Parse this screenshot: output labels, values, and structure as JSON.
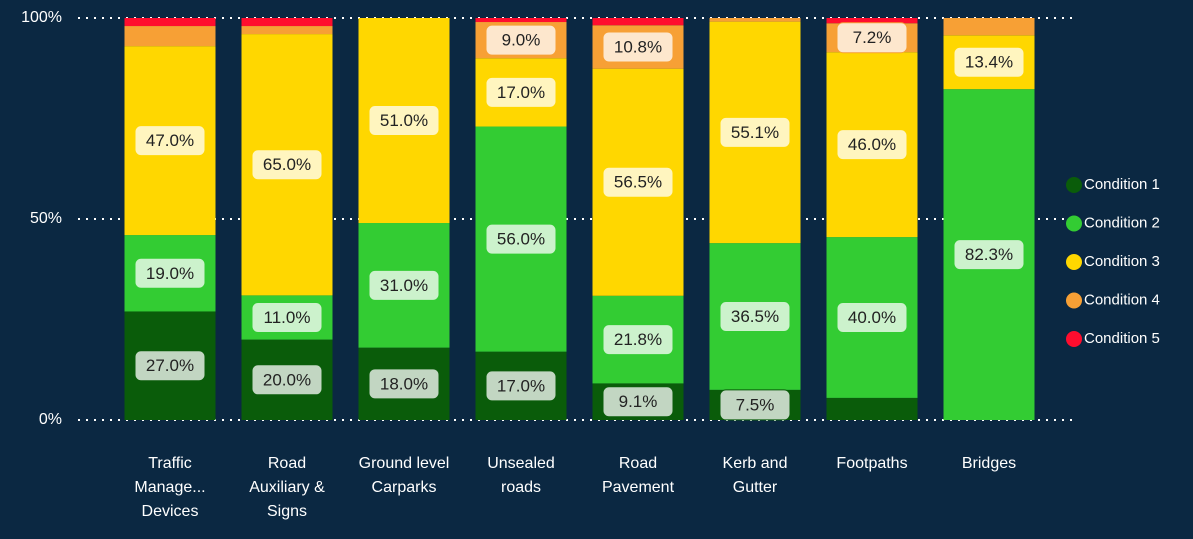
{
  "chart_data": {
    "type": "stacked_bar_100",
    "categories": [
      "Traffic Manage... Devices",
      "Road Auxiliary & Signs",
      "Ground level Carparks",
      "Unsealed roads",
      "Road Pavement",
      "Kerb and Gutter",
      "Footpaths",
      "Bridges"
    ],
    "series": [
      {
        "name": "Condition 1",
        "color": "#0a5c0a",
        "values": [
          27.0,
          20.0,
          18.0,
          17.0,
          9.1,
          7.5,
          5.5,
          0
        ],
        "value_labels": [
          "27.0%",
          "20.0%",
          "18.0%",
          "17.0%",
          "9.1%",
          "7.5%",
          null,
          null
        ]
      },
      {
        "name": "Condition 2",
        "color": "#33cc33",
        "values": [
          19.0,
          11.0,
          31.0,
          56.0,
          21.8,
          36.5,
          40.0,
          82.3
        ],
        "value_labels": [
          "19.0%",
          "11.0%",
          "31.0%",
          "56.0%",
          "21.8%",
          "36.5%",
          "40.0%",
          "82.3%"
        ]
      },
      {
        "name": "Condition 3",
        "color": "#ffd700",
        "values": [
          47.0,
          65.0,
          51.0,
          17.0,
          56.5,
          55.1,
          46.0,
          13.4
        ],
        "value_labels": [
          "47.0%",
          "65.0%",
          "51.0%",
          "17.0%",
          "56.5%",
          "55.1%",
          "46.0%",
          "13.4%"
        ]
      },
      {
        "name": "Condition 4",
        "color": "#f7a035",
        "values": [
          5.0,
          2.0,
          0,
          9.0,
          10.8,
          0.9,
          7.2,
          4.3
        ],
        "value_labels": [
          null,
          null,
          null,
          "9.0%",
          "10.8%",
          null,
          "7.2%",
          null
        ]
      },
      {
        "name": "Condition 5",
        "color": "#ff0d2e",
        "values": [
          2.0,
          2.0,
          0,
          1.0,
          1.8,
          0,
          1.3,
          0
        ],
        "value_labels": [
          null,
          null,
          null,
          null,
          null,
          null,
          null,
          null
        ]
      }
    ],
    "ylim": [
      0,
      100
    ],
    "yticks": [
      {
        "value": 0,
        "label": "0%"
      },
      {
        "value": 50,
        "label": "50%"
      },
      {
        "value": 100,
        "label": "100%"
      }
    ],
    "grid": true,
    "legend": "right"
  }
}
